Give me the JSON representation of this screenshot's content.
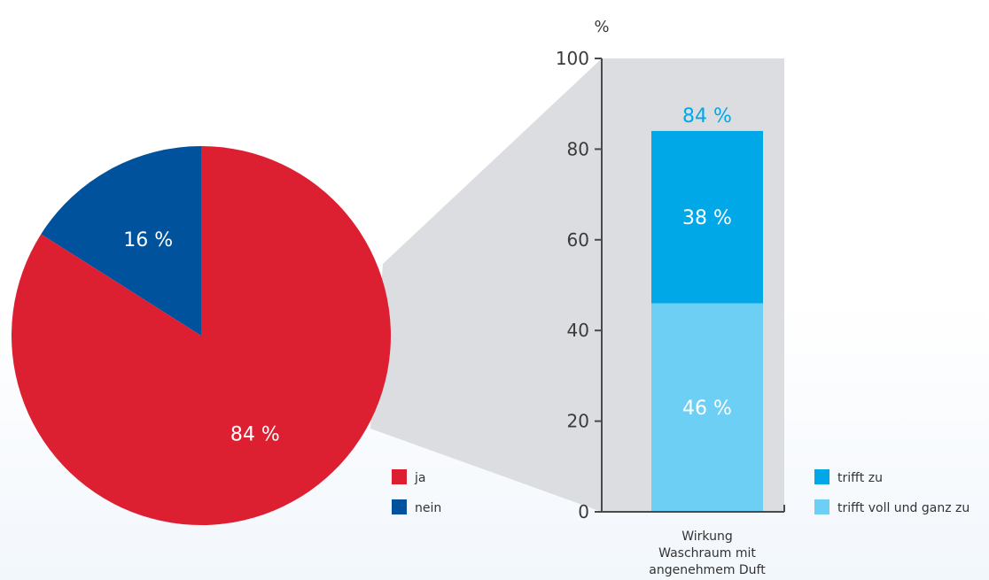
{
  "chart_data": [
    {
      "type": "pie",
      "slices": [
        {
          "label": "ja",
          "value": 84,
          "value_label": "84 %",
          "color": "#dc2032"
        },
        {
          "label": "nein",
          "value": 16,
          "value_label": "16 %",
          "color": "#00529c"
        }
      ],
      "legend": [
        "ja",
        "nein"
      ],
      "legend_position": "bottom-right"
    },
    {
      "type": "bar",
      "stacked": true,
      "categories": [
        "Wirkung Waschraum mit angenehmem Duft"
      ],
      "category_lines": [
        "Wirkung",
        "Waschraum mit",
        "angenehmem Duft"
      ],
      "series": [
        {
          "name": "trifft voll und ganz zu",
          "values": [
            46
          ],
          "value_labels": [
            "46 %"
          ],
          "color": "#6ccff3"
        },
        {
          "name": "trifft zu",
          "values": [
            38
          ],
          "value_labels": [
            "38 %"
          ],
          "color": "#00a8e8"
        }
      ],
      "total_labels": [
        "84 %"
      ],
      "total_color": "#00a8e8",
      "ylabel": "%",
      "ylim": [
        0,
        100
      ],
      "yticks": [
        0,
        20,
        40,
        60,
        80,
        100
      ],
      "legend": [
        "trifft zu",
        "trifft voll und ganz zu"
      ],
      "legend_position": "bottom-right",
      "grid": false
    }
  ],
  "colors": {
    "connector": "#dcdde0",
    "axis": "#4a4a4a"
  }
}
